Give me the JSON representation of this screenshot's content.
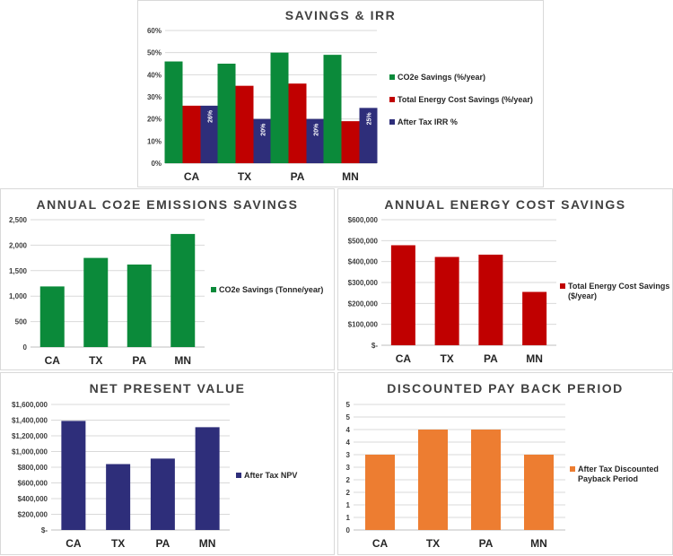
{
  "chart_data": [
    {
      "id": "irr",
      "type": "bar",
      "title": "SAVINGS & IRR",
      "categories": [
        "CA",
        "TX",
        "PA",
        "MN"
      ],
      "series": [
        {
          "name": "CO2e Savings (%/year)",
          "color": "#0b8a3a",
          "values": [
            0.46,
            0.45,
            0.5,
            0.49
          ]
        },
        {
          "name": "Total Energy Cost Savings (%/year)",
          "color": "#c00000",
          "values": [
            0.26,
            0.35,
            0.36,
            0.19
          ]
        },
        {
          "name": "After Tax IRR %",
          "color": "#2e2e7a",
          "values": [
            0.26,
            0.2,
            0.2,
            0.25
          ],
          "data_labels": [
            "26%",
            "20%",
            "20%",
            "25%"
          ]
        }
      ],
      "ylim": [
        0,
        0.6
      ],
      "yticks": [
        0,
        0.1,
        0.2,
        0.3,
        0.4,
        0.5,
        0.6
      ],
      "ytick_labels": [
        "0%",
        "10%",
        "20%",
        "30%",
        "40%",
        "50%",
        "60%"
      ],
      "legend": "right"
    },
    {
      "id": "co2",
      "type": "bar",
      "title": "ANNUAL CO2E EMISSIONS SAVINGS",
      "categories": [
        "CA",
        "TX",
        "PA",
        "MN"
      ],
      "series": [
        {
          "name": "CO2e Savings (Tonne/year)",
          "color": "#0b8a3a",
          "values": [
            1190,
            1750,
            1620,
            2220
          ]
        }
      ],
      "ylim": [
        0,
        2500
      ],
      "yticks": [
        0,
        500,
        1000,
        1500,
        2000,
        2500
      ],
      "ytick_labels": [
        "0",
        "500",
        "1,000",
        "1,500",
        "2,000",
        "2,500"
      ],
      "legend": "right"
    },
    {
      "id": "energy",
      "type": "bar",
      "title": "ANNUAL ENERGY COST SAVINGS",
      "categories": [
        "CA",
        "TX",
        "PA",
        "MN"
      ],
      "series": [
        {
          "name": "Total Energy Cost Savings ($/year)",
          "color": "#c00000",
          "values": [
            478000,
            422000,
            433000,
            255000
          ]
        }
      ],
      "ylim": [
        0,
        600000
      ],
      "yticks": [
        0,
        100000,
        200000,
        300000,
        400000,
        500000,
        600000
      ],
      "ytick_labels": [
        "$-",
        "$100,000",
        "$200,000",
        "$300,000",
        "$400,000",
        "$500,000",
        "$600,000"
      ],
      "legend": "right"
    },
    {
      "id": "npv",
      "type": "bar",
      "title": "NET PRESENT VALUE",
      "categories": [
        "CA",
        "TX",
        "PA",
        "MN"
      ],
      "series": [
        {
          "name": "After Tax NPV",
          "color": "#2e2e7a",
          "values": [
            1390000,
            840000,
            910000,
            1310000
          ]
        }
      ],
      "ylim": [
        0,
        1600000
      ],
      "yticks": [
        0,
        200000,
        400000,
        600000,
        800000,
        1000000,
        1200000,
        1400000,
        1600000
      ],
      "ytick_labels": [
        "$-",
        "$200,000",
        "$400,000",
        "$600,000",
        "$800,000",
        "$1,000,000",
        "$1,200,000",
        "$1,400,000",
        "$1,600,000"
      ],
      "legend": "right"
    },
    {
      "id": "payback",
      "type": "bar",
      "title": "DISCOUNTED PAY BACK PERIOD",
      "categories": [
        "CA",
        "TX",
        "PA",
        "MN"
      ],
      "series": [
        {
          "name": "After Tax Discounted Payback Period",
          "color": "#ed7d31",
          "values": [
            3,
            4,
            4,
            3
          ]
        }
      ],
      "ylim": [
        0,
        5
      ],
      "yticks": [
        0,
        0.5,
        1,
        1.5,
        2,
        2.5,
        3,
        3.5,
        4,
        4.5,
        5
      ],
      "ytick_labels": [
        "0",
        "1",
        "1",
        "2",
        "2",
        "3",
        "3",
        "4",
        "4",
        "5",
        "5"
      ],
      "legend": "right"
    }
  ]
}
